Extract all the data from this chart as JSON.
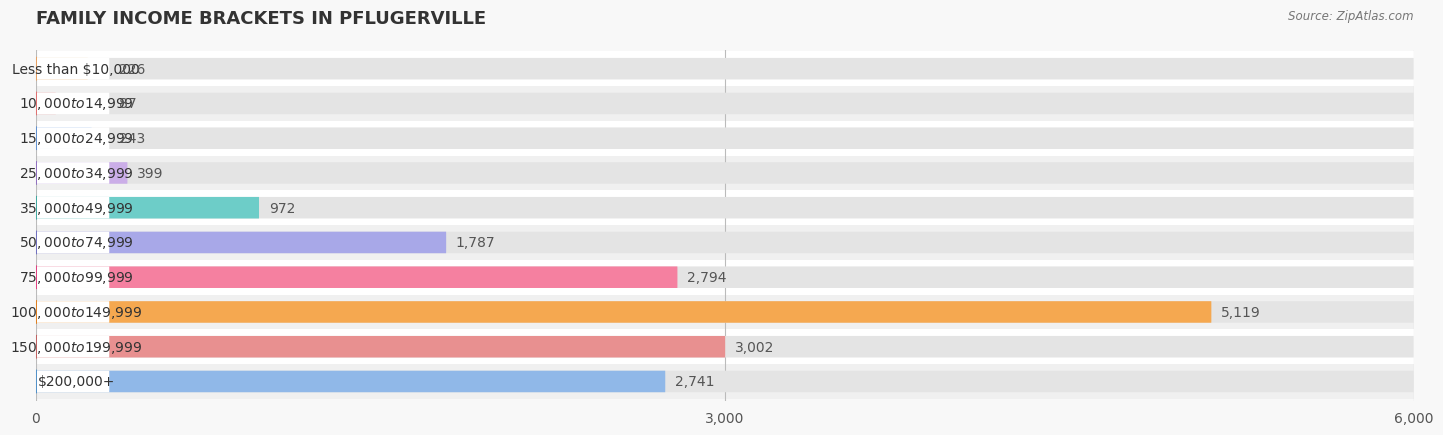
{
  "title": "FAMILY INCOME BRACKETS IN PFLUGERVILLE",
  "source": "Source: ZipAtlas.com",
  "categories": [
    "Less than $10,000",
    "$10,000 to $14,999",
    "$15,000 to $24,999",
    "$25,000 to $34,999",
    "$35,000 to $49,999",
    "$50,000 to $74,999",
    "$75,000 to $99,999",
    "$100,000 to $149,999",
    "$150,000 to $199,999",
    "$200,000+"
  ],
  "values": [
    226,
    87,
    243,
    399,
    972,
    1787,
    2794,
    5119,
    3002,
    2741
  ],
  "bar_colors": [
    "#f9c98e",
    "#f5a8a8",
    "#a8c8f5",
    "#cbaee8",
    "#6dcdc8",
    "#a8a8e8",
    "#f580a0",
    "#f5a850",
    "#e89090",
    "#90b8e8"
  ],
  "dot_colors": [
    "#e8a060",
    "#e07070",
    "#6090d0",
    "#9070c0",
    "#40a8a0",
    "#7070c0",
    "#e04080",
    "#e08020",
    "#c06060",
    "#5090c8"
  ],
  "row_colors": [
    "#ffffff",
    "#f0f0f0"
  ],
  "xlim": [
    0,
    6000
  ],
  "xticks": [
    0,
    3000,
    6000
  ],
  "bar_background_color": "#e4e4e4",
  "title_fontsize": 13,
  "label_fontsize": 10,
  "value_fontsize": 10,
  "bar_height": 0.62,
  "label_xoffset_data": 320
}
